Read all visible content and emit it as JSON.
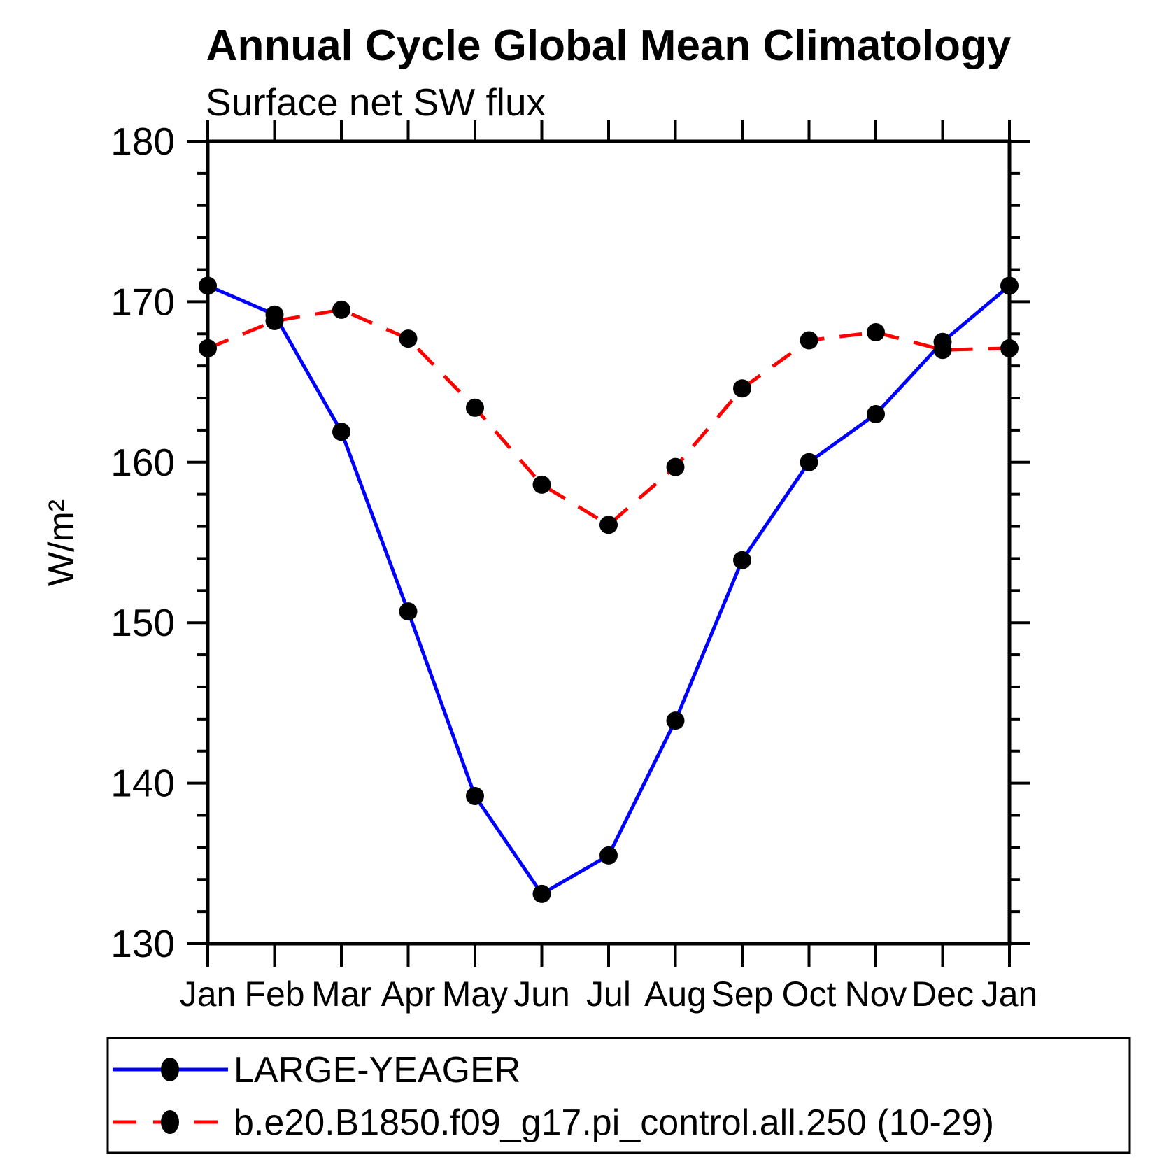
{
  "chart_data": {
    "type": "line",
    "title": "Annual Cycle Global Mean Climatology",
    "subtitle": "Surface net SW flux",
    "xlabel": "",
    "ylabel": "W/m²",
    "categories": [
      "Jan",
      "Feb",
      "Mar",
      "Apr",
      "May",
      "Jun",
      "Jul",
      "Aug",
      "Sep",
      "Oct",
      "Nov",
      "Dec",
      "Jan"
    ],
    "ylim": [
      130,
      180
    ],
    "yticks_major": [
      130,
      140,
      150,
      160,
      170,
      180
    ],
    "ytick_minor_step": 2,
    "grid": false,
    "legend_position": "bottom-left-box",
    "frame_color": "#000000",
    "marker_color": "#000000",
    "series": [
      {
        "name": "LARGE-YEAGER",
        "color": "#0000ff",
        "line_style": "solid",
        "values": [
          171.0,
          169.2,
          161.9,
          150.7,
          139.2,
          133.1,
          135.5,
          143.9,
          153.9,
          160.0,
          163.0,
          167.5,
          171.0
        ]
      },
      {
        "name": "b.e20.B1850.f09_g17.pi_control.all.250 (10-29)",
        "color": "#ff0000",
        "line_style": "dashed",
        "values": [
          167.1,
          168.8,
          169.5,
          167.7,
          163.4,
          158.6,
          156.1,
          159.7,
          164.6,
          167.6,
          168.1,
          167.0,
          167.1
        ]
      }
    ]
  }
}
